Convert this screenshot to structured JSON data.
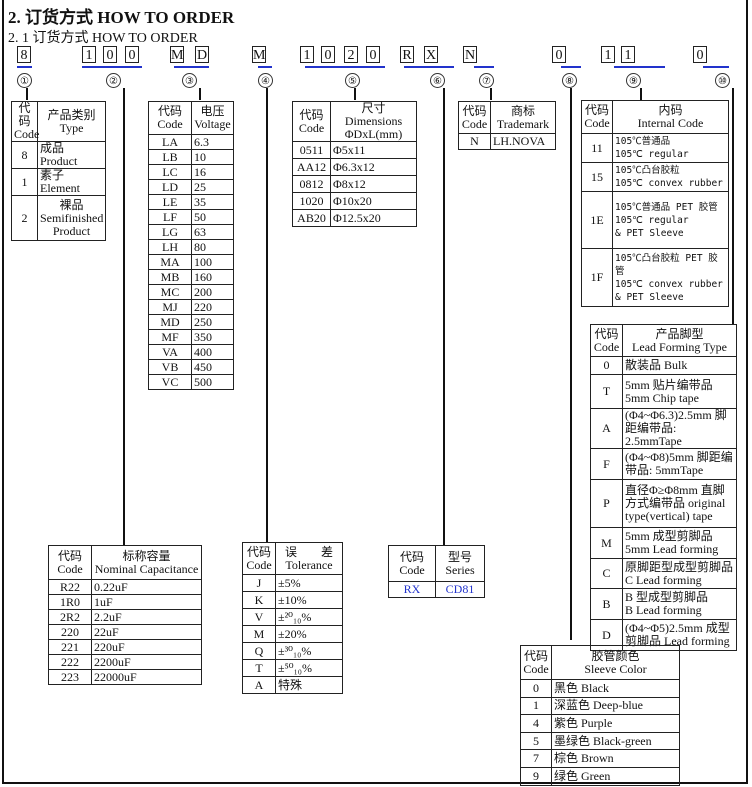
{
  "title": "2. 订货方式 HOW TO ORDER",
  "subtitle": "2. 1   订货方式 HOW TO ORDER",
  "code_chars": [
    "8",
    "1",
    "0",
    "0",
    "M",
    "D",
    "M",
    "1",
    "0",
    "2",
    "0",
    "R",
    "X",
    "N",
    "0",
    "1",
    "1",
    "0"
  ],
  "circled": [
    "①",
    "②",
    "③",
    "④",
    "⑤",
    "⑥",
    "⑦",
    "⑧",
    "⑨",
    "⑩"
  ],
  "accent_color": "#2233cc",
  "tables": {
    "type": {
      "header": [
        "代码\nCode",
        "产品类别\nType"
      ],
      "rows": [
        [
          "8",
          "成品 Product"
        ],
        [
          "1",
          "素子 Element"
        ],
        [
          "2",
          "裸品\nSemifinished\nProduct"
        ]
      ]
    },
    "voltage": {
      "header": [
        "代码\nCode",
        "电压\nVoltage"
      ],
      "rows": [
        [
          "LA",
          "6.3"
        ],
        [
          "LB",
          "10"
        ],
        [
          "LC",
          "16"
        ],
        [
          "LD",
          "25"
        ],
        [
          "LE",
          "35"
        ],
        [
          "LF",
          "50"
        ],
        [
          "LG",
          "63"
        ],
        [
          "LH",
          "80"
        ],
        [
          "MA",
          "100"
        ],
        [
          "MB",
          "160"
        ],
        [
          "MC",
          "200"
        ],
        [
          "MJ",
          "220"
        ],
        [
          "MD",
          "250"
        ],
        [
          "MF",
          "350"
        ],
        [
          "VA",
          "400"
        ],
        [
          "VB",
          "450"
        ],
        [
          "VC",
          "500"
        ]
      ]
    },
    "dimensions": {
      "header": [
        "代码\nCode",
        "尺寸 Dimensions\nΦDxL(mm)"
      ],
      "rows": [
        [
          "0511",
          "Φ5x11"
        ],
        [
          "AA12",
          "Φ6.3x12"
        ],
        [
          "0812",
          "Φ8x12"
        ],
        [
          "1020",
          "Φ10x20"
        ],
        [
          "AB20",
          "Φ12.5x20"
        ]
      ]
    },
    "trademark": {
      "header": [
        "代码\nCode",
        "商标\nTrademark"
      ],
      "rows": [
        [
          "N",
          "LH.NOVA"
        ]
      ]
    },
    "internal": {
      "header": [
        "代码\nCode",
        "内码\nInternal Code"
      ],
      "rows": [
        [
          "11",
          "105℃普通品\n105℃ regular"
        ],
        [
          "15",
          "105℃凸台胶粒\n105℃ convex rubber"
        ],
        [
          "1E",
          "105℃普通品 PET 胶管\n105℃ regular\n& PET Sleeve"
        ],
        [
          "1F",
          "105℃凸台胶粒 PET 胶管\n105℃ convex rubber\n& PET Sleeve"
        ]
      ]
    },
    "lead": {
      "header": [
        "代码\nCode",
        "产品脚型\nLead Forming Type"
      ],
      "rows": [
        [
          "0",
          "散装品 Bulk"
        ],
        [
          "T",
          "5mm 贴片编带品\n5mm Chip tape"
        ],
        [
          "A",
          "(Φ4~Φ6.3)2.5mm 脚距编带品: 2.5mmTape"
        ],
        [
          "F",
          "(Φ4~Φ8)5mm 脚距编带品: 5mmTape"
        ],
        [
          "P",
          "直径Φ≥Φ8mm 直脚方式编带品 original type(vertical) tape"
        ],
        [
          "M",
          "5mm 成型剪脚品 5mm Lead forming"
        ],
        [
          "C",
          "原脚距型成型剪脚品\nC Lead forming"
        ],
        [
          "B",
          "B 型成型剪脚品\nB Lead forming"
        ],
        [
          "D",
          "(Φ4~Φ5)2.5mm 成型剪脚品 Lead forming"
        ]
      ]
    },
    "capacitance": {
      "header": [
        "代码\nCode",
        "标称容量\nNominal Capacitance"
      ],
      "rows": [
        [
          "R22",
          "0.22uF"
        ],
        [
          "1R0",
          "1uF"
        ],
        [
          "2R2",
          "2.2uF"
        ],
        [
          "220",
          "22uF"
        ],
        [
          "221",
          "220uF"
        ],
        [
          "222",
          "2200uF"
        ],
        [
          "223",
          "22000uF"
        ]
      ]
    },
    "tolerance": {
      "header": [
        "代码\nCode",
        "误　　差\nTolerance"
      ],
      "rows": [
        [
          "J",
          "±5%"
        ],
        [
          "K",
          "±10%"
        ],
        [
          "V",
          "±²⁰₁₀%"
        ],
        [
          "M",
          "±20%"
        ],
        [
          "Q",
          "±³⁰₁₀%"
        ],
        [
          "T",
          "±⁵⁰₁₀%"
        ],
        [
          "A",
          "特殊"
        ]
      ]
    },
    "series": {
      "header": [
        "代码\nCode",
        "型号\nSeries"
      ],
      "rows": [
        [
          "RX",
          "CD81"
        ]
      ]
    },
    "sleeve": {
      "header": [
        "代码\nCode",
        "胶管颜色\nSleeve Color"
      ],
      "rows": [
        [
          "0",
          "黑色 Black"
        ],
        [
          "1",
          "深蓝色 Deep-blue"
        ],
        [
          "4",
          "紫色 Purple"
        ],
        [
          "5",
          "墨绿色 Black-green"
        ],
        [
          "7",
          "棕色 Brown"
        ],
        [
          "9",
          "绿色 Green"
        ]
      ]
    }
  }
}
